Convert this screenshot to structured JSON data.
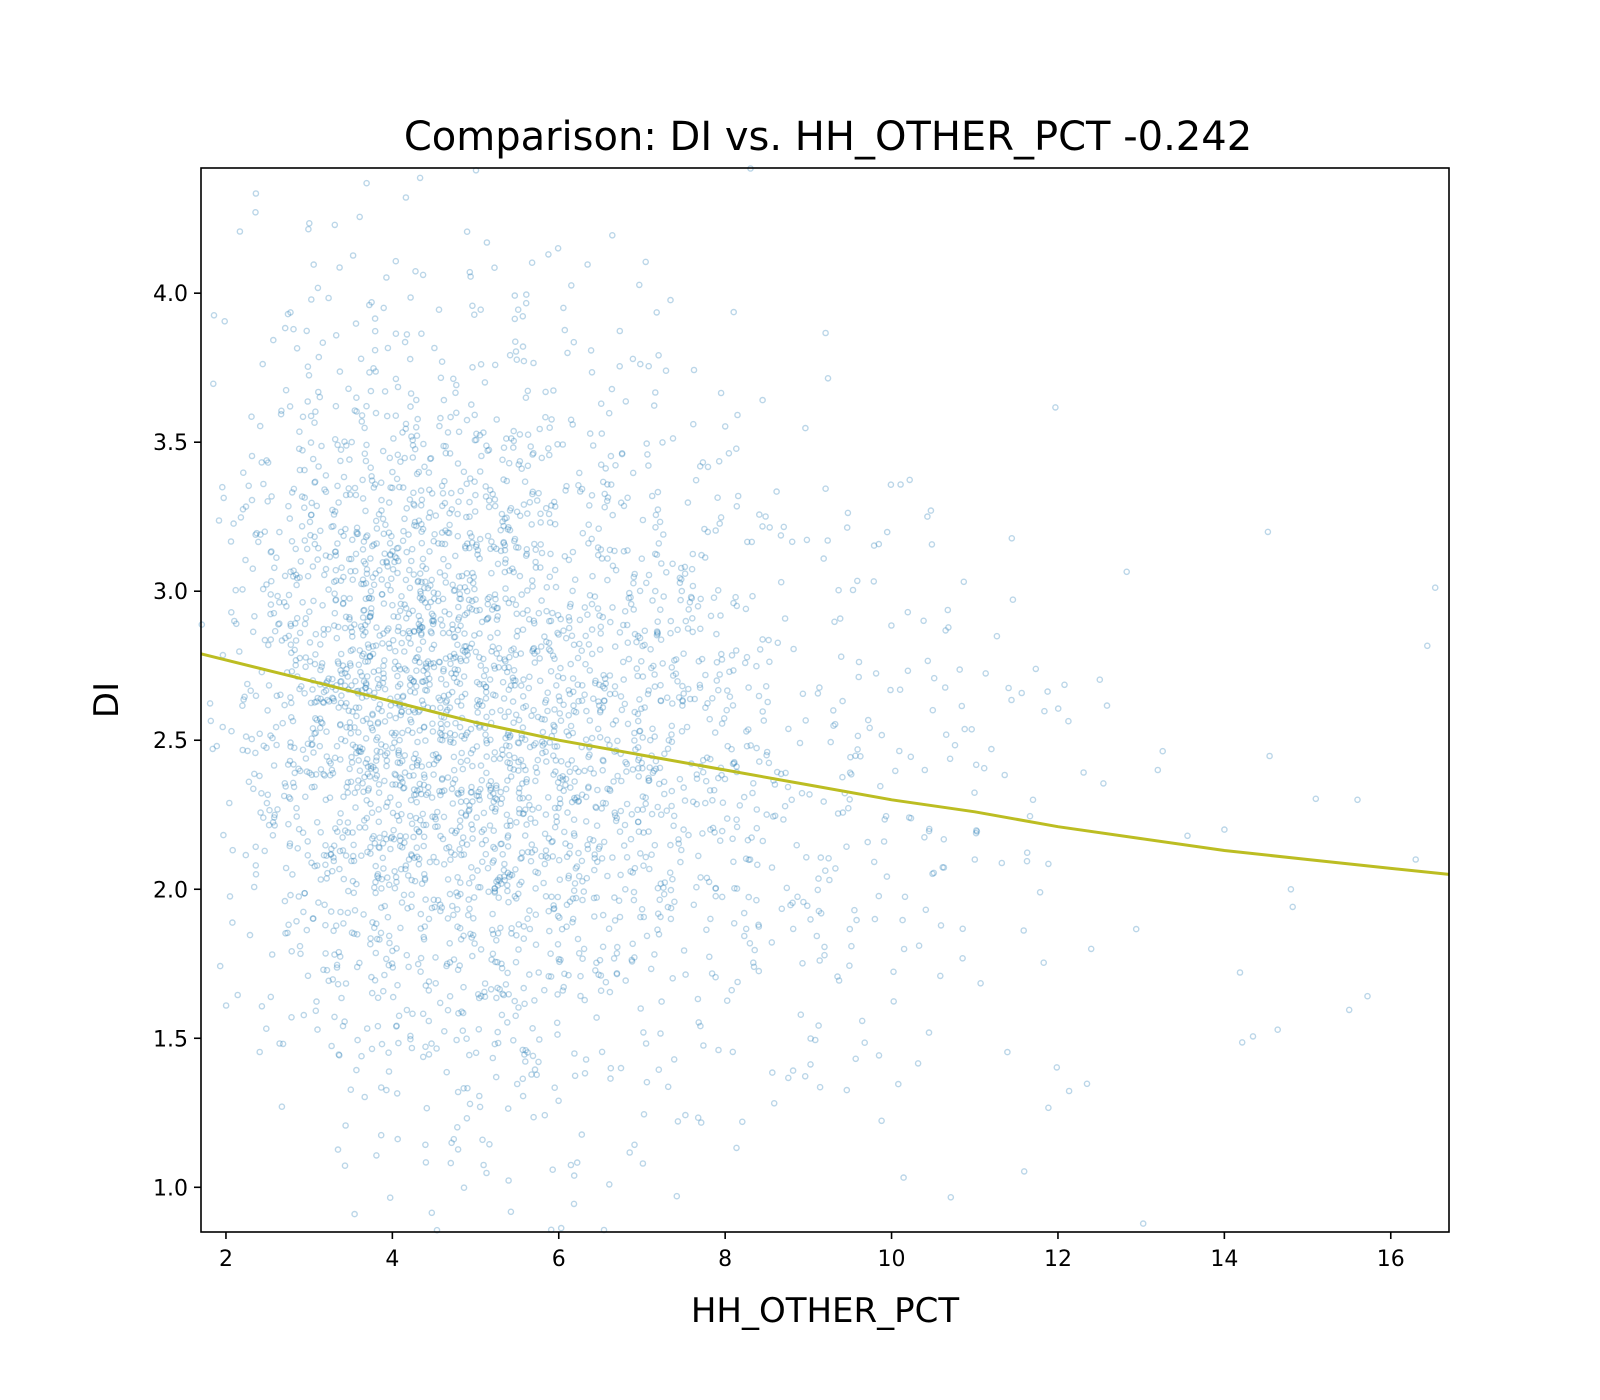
{
  "chart_data": {
    "type": "scatter",
    "title": "Comparison:  DI  vs.  HH_OTHER_PCT  -0.242",
    "xlabel": "HH_OTHER_PCT",
    "ylabel": "DI",
    "xlim": [
      1.7,
      16.7
    ],
    "ylim": [
      0.85,
      4.42
    ],
    "xticks": [
      2,
      4,
      6,
      8,
      10,
      12,
      14,
      16
    ],
    "yticks": [
      1.0,
      1.5,
      2.0,
      2.5,
      3.0,
      3.5,
      4.0
    ],
    "xtick_labels": [
      "2",
      "4",
      "6",
      "8",
      "10",
      "12",
      "14",
      "16"
    ],
    "ytick_labels": [
      "1.0",
      "1.5",
      "2.0",
      "2.5",
      "3.0",
      "3.5",
      "4.0"
    ],
    "grid": false,
    "point_color": "#1f77b4",
    "point_opacity": 0.3,
    "fit_color": "#bcbd22",
    "point_sample": {
      "note_free": true,
      "x": [
        2.1,
        2.5,
        2.9,
        3.2,
        3.5,
        3.8,
        4.0,
        4.2,
        4.4,
        4.6,
        4.9,
        5.1,
        5.3,
        5.6,
        5.9,
        6.2,
        6.5,
        6.8,
        7.1,
        7.5,
        7.9,
        8.3,
        8.8,
        9.3,
        9.8,
        10.4,
        11.0,
        11.7,
        12.4,
        13.2,
        14.0,
        14.8,
        15.6,
        16.3
      ],
      "y": [
        2.9,
        2.6,
        3.1,
        2.3,
        2.8,
        2.4,
        3.4,
        2.1,
        2.7,
        2.5,
        3.0,
        2.2,
        2.6,
        2.4,
        2.8,
        2.3,
        2.6,
        2.0,
        2.5,
        2.2,
        2.7,
        2.1,
        2.3,
        2.6,
        1.9,
        2.4,
        2.1,
        2.3,
        1.8,
        2.4,
        2.2,
        2.0,
        2.3,
        2.1
      ]
    },
    "fit_line": {
      "x": [
        1.7,
        3.0,
        4.0,
        5.0,
        6.0,
        7.0,
        8.0,
        9.0,
        10.0,
        11.0,
        12.0,
        13.0,
        14.0,
        15.0,
        16.0,
        16.7
      ],
      "y": [
        2.79,
        2.7,
        2.63,
        2.56,
        2.5,
        2.45,
        2.4,
        2.35,
        2.3,
        2.26,
        2.21,
        2.17,
        2.13,
        2.1,
        2.07,
        2.05
      ]
    },
    "point_count": 3200
  }
}
